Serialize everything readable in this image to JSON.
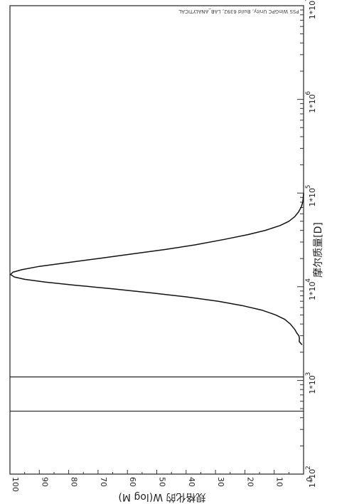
{
  "chart_data": {
    "type": "line",
    "orientation": "rotated-90-clockwise",
    "xlabel": "摩尔质量[D]",
    "ylabel": "规格化的 W(log M)",
    "note": "PSS WinGPC Unity, Build 6392, LAB_ANALYTICAL",
    "x_scale": "log",
    "x_range": [
      100,
      10000000
    ],
    "x_ticks": [
      {
        "base": "1*10",
        "exp": "2",
        "value": 100
      },
      {
        "base": "1*10",
        "exp": "3",
        "value": 1000
      },
      {
        "base": "1*10",
        "exp": "4",
        "value": 10000
      },
      {
        "base": "1*10",
        "exp": "5",
        "value": 100000
      },
      {
        "base": "1*10",
        "exp": "6",
        "value": 1000000
      },
      {
        "base": "1*10",
        "exp": "7",
        "value": 10000000
      }
    ],
    "ylim": [
      0,
      100
    ],
    "y_ticks": [
      "0",
      "10",
      "20",
      "30",
      "40",
      "50",
      "60",
      "70",
      "80",
      "90",
      "100"
    ],
    "vertical_markers": [
      470,
      1090
    ],
    "series": [
      {
        "points": [
          [
            2400,
            0.5
          ],
          [
            2600,
            1.5
          ],
          [
            2800,
            1.4
          ],
          [
            3000,
            1.6
          ],
          [
            3200,
            2.3
          ],
          [
            3500,
            3.0
          ],
          [
            4000,
            4.5
          ],
          [
            4500,
            6.5
          ],
          [
            5000,
            9.5
          ],
          [
            5600,
            14
          ],
          [
            6300,
            21
          ],
          [
            7000,
            29
          ],
          [
            7800,
            40
          ],
          [
            8600,
            52
          ],
          [
            9500,
            65
          ],
          [
            10400,
            78
          ],
          [
            11200,
            88
          ],
          [
            12000,
            95
          ],
          [
            12700,
            98.5
          ],
          [
            13500,
            99.8
          ],
          [
            14300,
            99
          ],
          [
            15200,
            96
          ],
          [
            16500,
            90
          ],
          [
            18000,
            81
          ],
          [
            20000,
            70
          ],
          [
            22500,
            58
          ],
          [
            25000,
            47
          ],
          [
            28000,
            37
          ],
          [
            32000,
            27
          ],
          [
            36000,
            19
          ],
          [
            40000,
            13
          ],
          [
            45000,
            8
          ],
          [
            50000,
            5
          ],
          [
            56000,
            3
          ],
          [
            63000,
            1.7
          ],
          [
            71000,
            0.8
          ],
          [
            80000,
            0.3
          ],
          [
            90000,
            0.1
          ],
          [
            100000,
            0
          ]
        ]
      }
    ]
  }
}
